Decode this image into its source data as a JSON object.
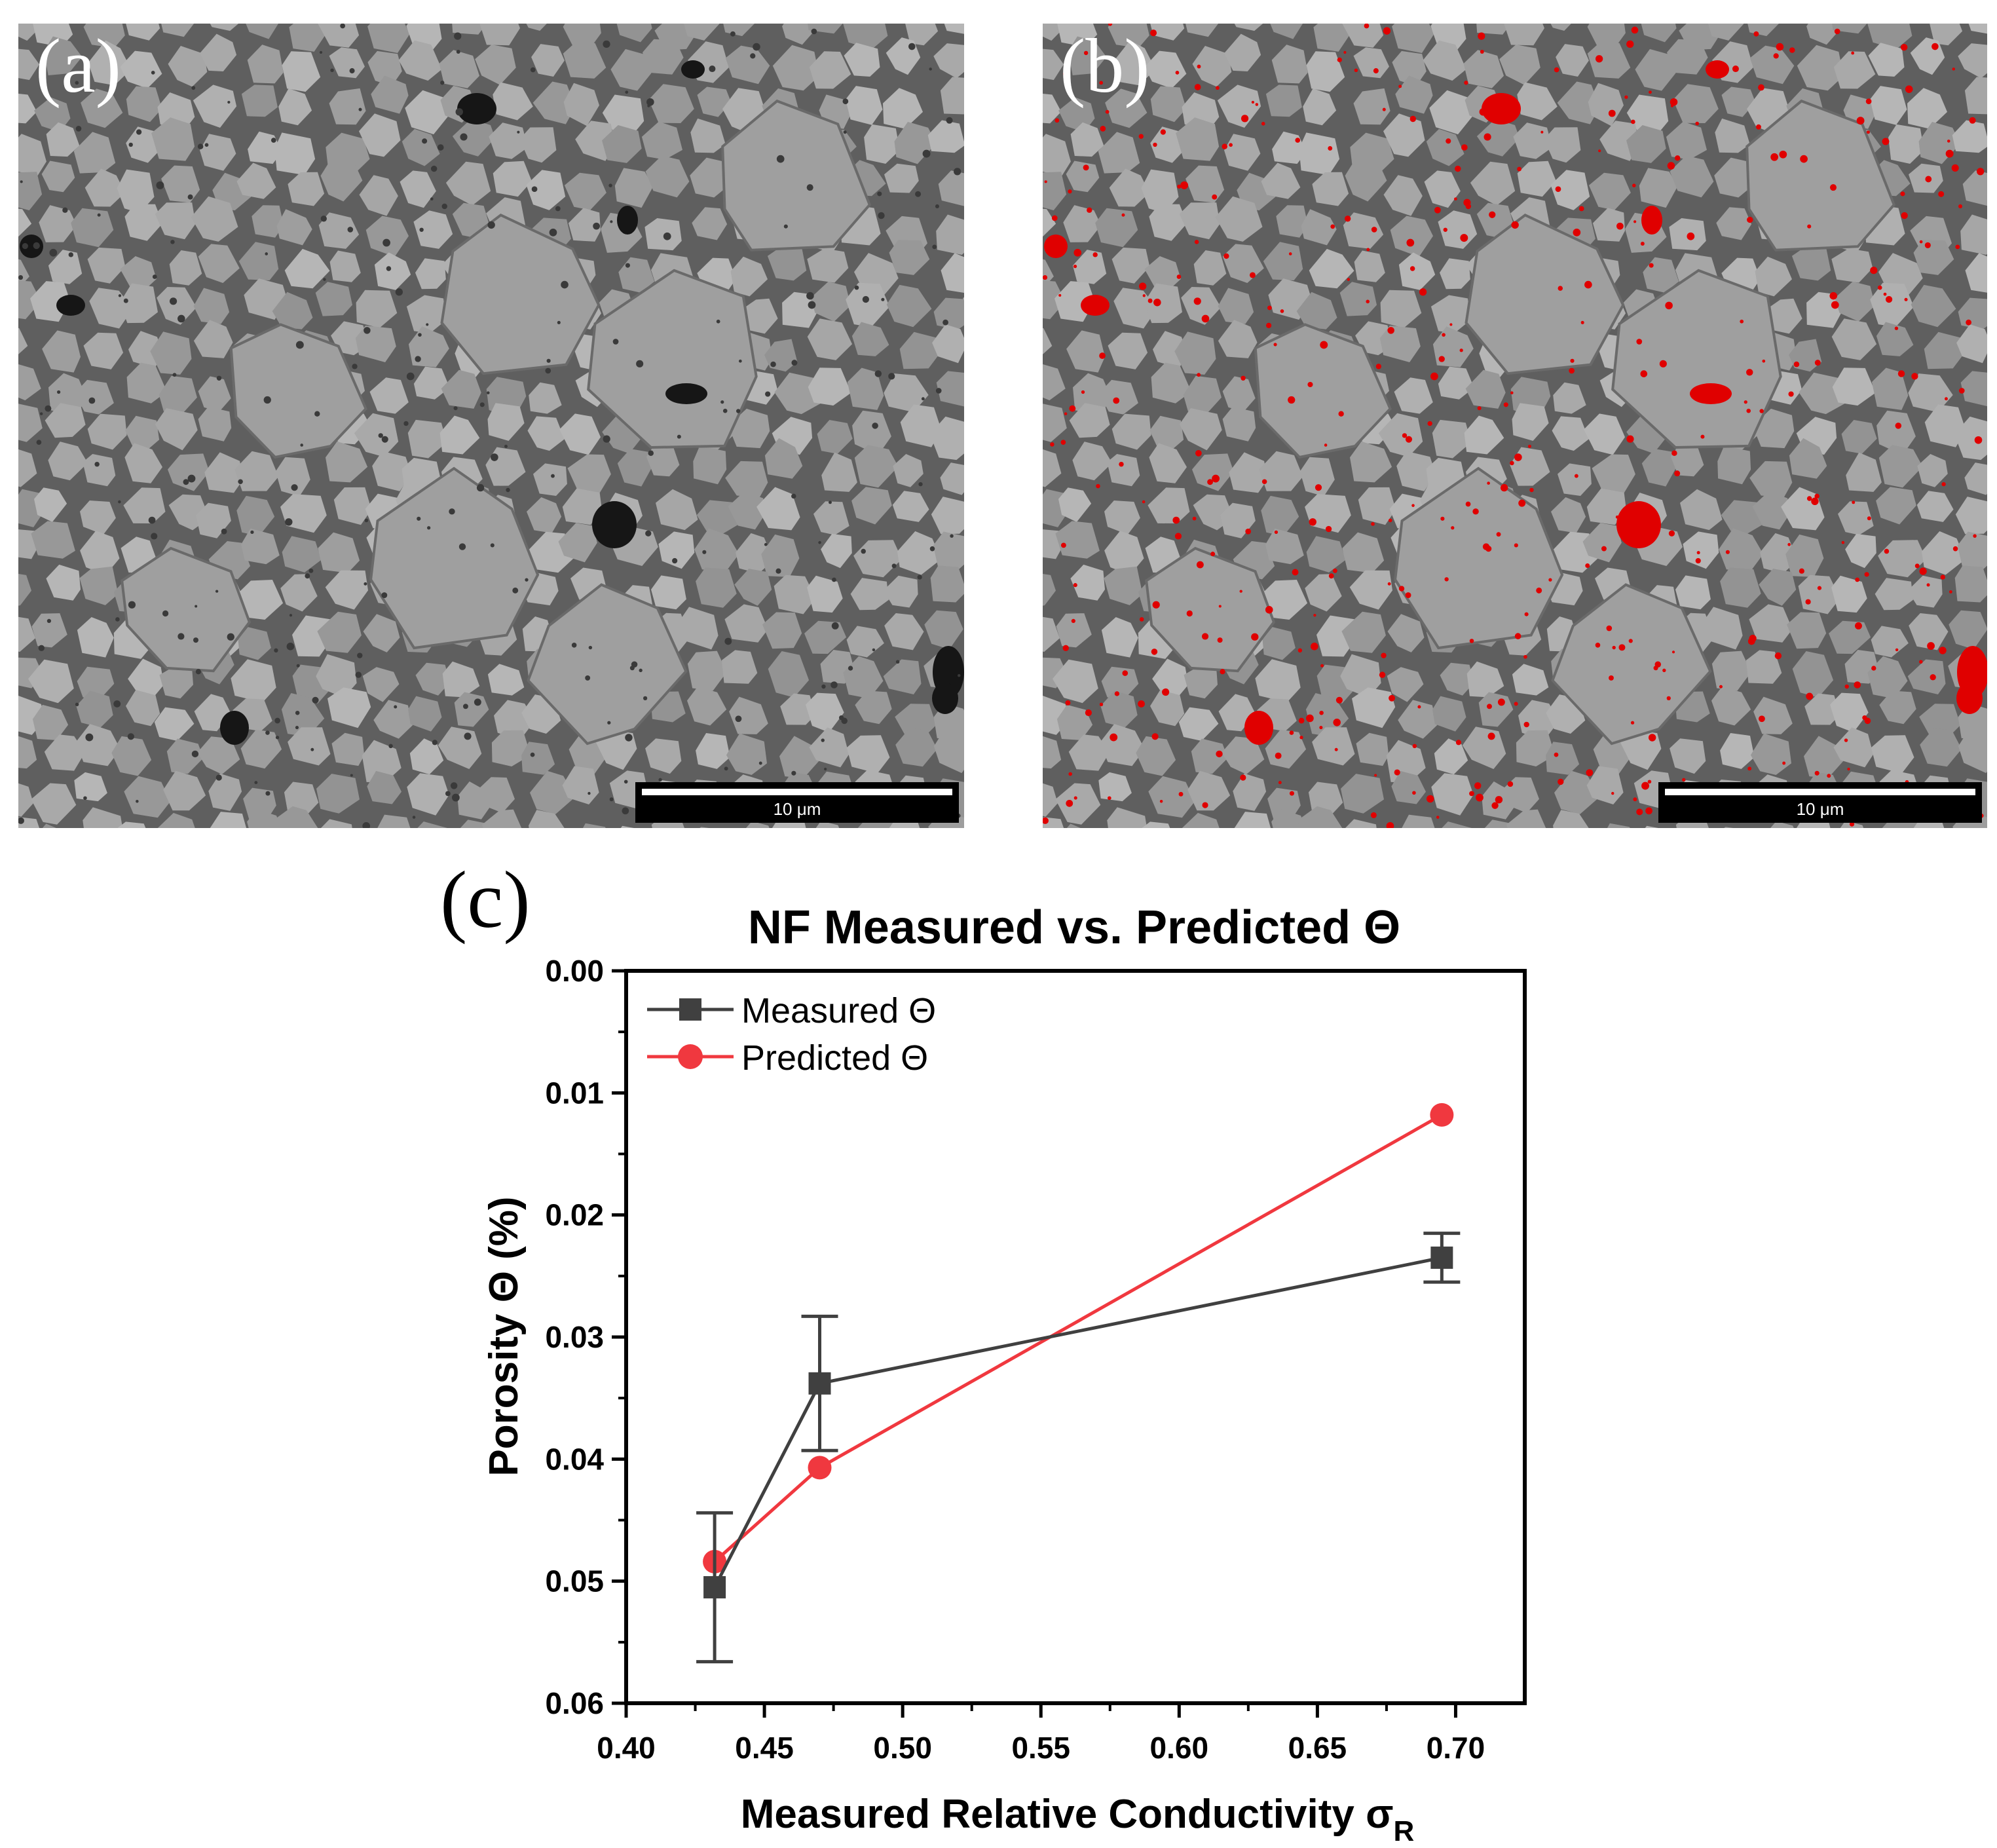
{
  "panels": {
    "a": {
      "label": "(a)",
      "scale_label": "10 μm"
    },
    "b": {
      "label": "(b)",
      "scale_label": "10 μm"
    },
    "c": {
      "label": "(c)"
    }
  },
  "colors": {
    "measured": "#404040",
    "predicted": "#f0383f",
    "overlay": "#e00000"
  },
  "chart_data": {
    "type": "line",
    "title": "NF Measured vs. Predicted Θ",
    "xlabel": "Measured Relative Conductivity σ",
    "xlabel_subscript": "R",
    "ylabel": "Porosity Θ (%)",
    "xlim": [
      0.4,
      0.725
    ],
    "ylim": [
      0.0,
      0.06
    ],
    "y_inverted": true,
    "x_ticks": [
      "0.40",
      "0.45",
      "0.50",
      "0.55",
      "0.60",
      "0.65",
      "0.70"
    ],
    "y_ticks": [
      "0.00",
      "0.01",
      "0.02",
      "0.03",
      "0.04",
      "0.05",
      "0.06"
    ],
    "legend_position": "top-left",
    "series": [
      {
        "name": "Measured Θ",
        "marker": "square",
        "x": [
          0.432,
          0.47,
          0.695
        ],
        "y": [
          0.0505,
          0.0338,
          0.0235
        ],
        "yerr": [
          0.0061,
          0.0055,
          0.002
        ]
      },
      {
        "name": "Predicted Θ",
        "marker": "circle",
        "x": [
          0.432,
          0.47,
          0.695
        ],
        "y": [
          0.0484,
          0.0407,
          0.0118
        ]
      }
    ]
  }
}
